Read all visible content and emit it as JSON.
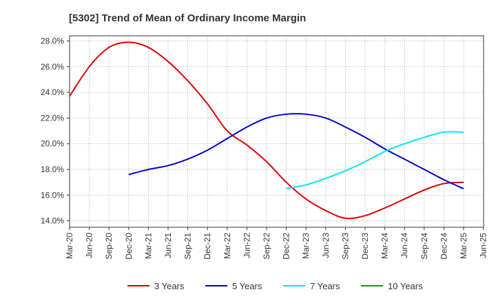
{
  "chart_data": {
    "type": "line",
    "title": "[5302]  Trend of Mean of Ordinary Income Margin",
    "xlabel": "",
    "ylabel": "",
    "x_ticks": [
      "Mar-20",
      "Jun-20",
      "Sep-20",
      "Dec-20",
      "Mar-21",
      "Jun-21",
      "Sep-21",
      "Dec-21",
      "Mar-22",
      "Jun-22",
      "Sep-22",
      "Dec-22",
      "Mar-23",
      "Jun-23",
      "Sep-23",
      "Dec-23",
      "Mar-24",
      "Jun-24",
      "Sep-24",
      "Dec-24",
      "Mar-25",
      "Jun-25"
    ],
    "y_ticks": [
      "14.0%",
      "16.0%",
      "18.0%",
      "20.0%",
      "22.0%",
      "24.0%",
      "26.0%",
      "28.0%"
    ],
    "ylim": [
      13.5,
      28.4
    ],
    "grid": true,
    "legend_position": "bottom",
    "series": [
      {
        "name": "3 Years",
        "color": "#dd0000",
        "x": [
          "Mar-20",
          "Jun-20",
          "Sep-20",
          "Dec-20",
          "Mar-21",
          "Jun-21",
          "Sep-21",
          "Dec-21",
          "Mar-22",
          "Jun-22",
          "Sep-22",
          "Dec-22",
          "Mar-23",
          "Jun-23",
          "Sep-23",
          "Dec-23",
          "Mar-24",
          "Jun-24",
          "Sep-24",
          "Dec-24",
          "Mar-25"
        ],
        "values": [
          23.7,
          26.0,
          27.5,
          27.9,
          27.5,
          26.4,
          24.9,
          23.1,
          21.0,
          19.9,
          18.6,
          17.0,
          15.7,
          14.8,
          14.2,
          14.4,
          15.0,
          15.7,
          16.4,
          16.9,
          17.0
        ]
      },
      {
        "name": "5 Years",
        "color": "#0000cc",
        "x": [
          "Dec-20",
          "Mar-21",
          "Jun-21",
          "Sep-21",
          "Dec-21",
          "Mar-22",
          "Jun-22",
          "Sep-22",
          "Dec-22",
          "Mar-23",
          "Jun-23",
          "Sep-23",
          "Dec-23",
          "Mar-24",
          "Jun-24",
          "Sep-24",
          "Dec-24",
          "Mar-25"
        ],
        "values": [
          17.6,
          18.0,
          18.3,
          18.8,
          19.5,
          20.4,
          21.3,
          22.0,
          22.3,
          22.3,
          22.0,
          21.3,
          20.5,
          19.6,
          18.8,
          18.0,
          17.2,
          16.5
        ]
      },
      {
        "name": "7 Years",
        "color": "#00e5ee",
        "x": [
          "Dec-22",
          "Mar-23",
          "Jun-23",
          "Sep-23",
          "Dec-23",
          "Mar-24",
          "Jun-24",
          "Sep-24",
          "Dec-24",
          "Mar-25"
        ],
        "values": [
          16.5,
          16.8,
          17.3,
          17.9,
          18.6,
          19.4,
          20.0,
          20.5,
          20.9,
          20.9
        ]
      },
      {
        "name": "10 Years",
        "color": "#228b22",
        "x": [],
        "values": []
      }
    ]
  }
}
